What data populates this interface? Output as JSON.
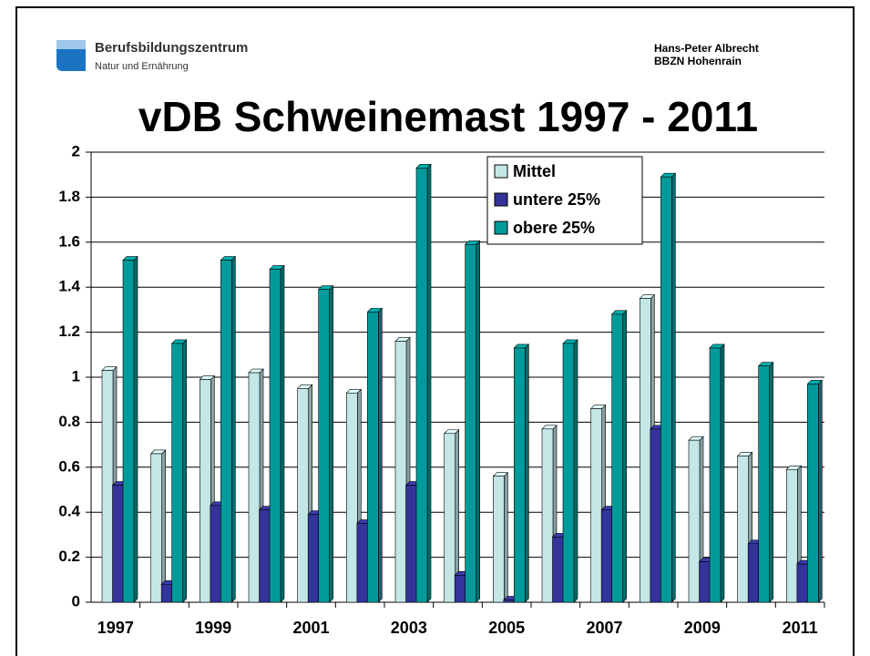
{
  "header": {
    "org": "Berufsbildungszentrum",
    "sub": "Natur und Ernährung",
    "author": "Hans-Peter Albrecht",
    "place": "BBZN Hohenrain"
  },
  "chart_data": {
    "type": "bar",
    "title": "vDB Schweinemast 1997 - 2011",
    "categories": [
      "1997",
      null,
      "1999",
      null,
      "2001",
      null,
      "2003",
      null,
      "2005",
      null,
      "2007",
      null,
      "2009",
      null,
      "2011"
    ],
    "series": [
      {
        "name": "Mittel",
        "color": "#c4e6e6",
        "values": [
          1.03,
          0.66,
          0.99,
          1.02,
          0.95,
          0.93,
          1.16,
          0.75,
          0.56,
          0.77,
          0.86,
          1.35,
          0.72,
          0.65,
          0.59
        ]
      },
      {
        "name": "untere 25%",
        "color": "#33339a",
        "values": [
          0.52,
          0.08,
          0.43,
          0.41,
          0.39,
          0.35,
          0.52,
          0.12,
          0.01,
          0.29,
          0.41,
          0.77,
          0.18,
          0.26,
          0.17
        ]
      },
      {
        "name": "obere 25%",
        "color": "#009a9a",
        "values": [
          1.52,
          1.15,
          1.52,
          1.48,
          1.39,
          1.29,
          1.93,
          1.59,
          1.13,
          1.15,
          1.28,
          1.89,
          1.13,
          1.05,
          0.97
        ]
      }
    ],
    "ylim": [
      0,
      2
    ],
    "yticks": [
      0,
      0.2,
      0.4,
      0.6,
      0.8,
      1,
      1.2,
      1.4,
      1.6,
      1.8,
      2
    ],
    "grid": true,
    "legend": "top-right"
  }
}
